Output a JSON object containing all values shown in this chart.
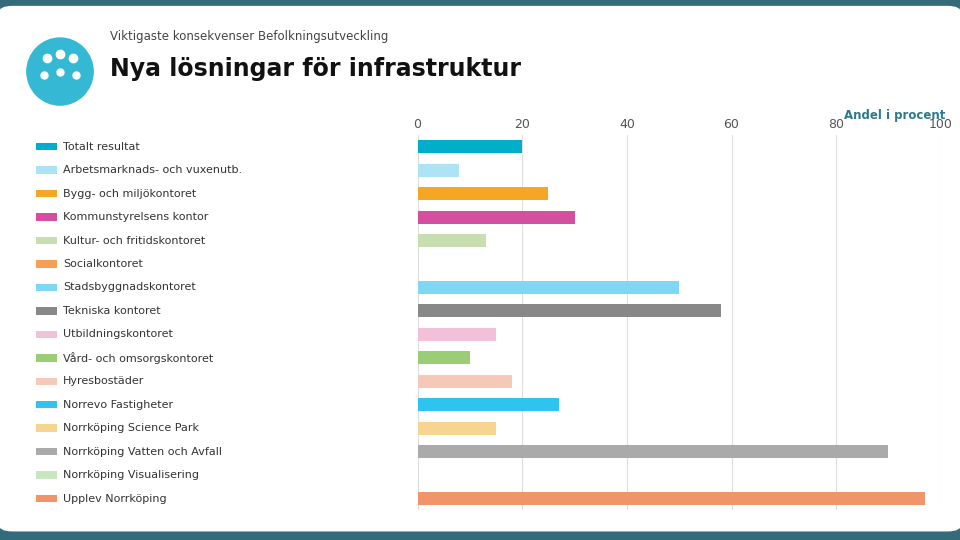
{
  "title_small": "Viktigaste konsekvenser Befolkningsutveckling",
  "title_large": "Nya lösningar för infrastruktur",
  "xlabel": "Andel i procent",
  "categories": [
    "Totalt resultat",
    "Arbetsmarknads- och vuxenutb.",
    "Bygg- och miljökontoret",
    "Kommunstyrelsens kontor",
    "Kultur- och fritidskontoret",
    "Socialkontoret",
    "Stadsbyggnadskontoret",
    "Tekniska kontoret",
    "Utbildningskontoret",
    "Vård- och omsorgskontoret",
    "Hyresbostäder",
    "Norrevo Fastigheter",
    "Norrköping Science Park",
    "Norrköping Vatten och Avfall",
    "Norrköping Visualisering",
    "Upplev Norrköping"
  ],
  "values": [
    20,
    8,
    25,
    30,
    13,
    0,
    50,
    58,
    15,
    10,
    18,
    27,
    15,
    90,
    0,
    97
  ],
  "colors": [
    "#00AECC",
    "#AEE3F5",
    "#F5A623",
    "#D44FA0",
    "#C8DDB0",
    "#F5A055",
    "#7ED8F5",
    "#888888",
    "#F2C0D8",
    "#9ACD76",
    "#F5C8B8",
    "#2EC4F0",
    "#F5D590",
    "#AAAAAA",
    "#C8E6C0",
    "#F0956A"
  ],
  "xlim": [
    0,
    100
  ],
  "xticks": [
    0,
    20,
    40,
    60,
    80,
    100
  ],
  "background_color": "#FFFFFF",
  "outer_background": "#336B7A",
  "title_color": "#333333",
  "subtitle_color": "#111111",
  "xlabel_color": "#2B7A8C",
  "grid_color": "#DDDDDD",
  "tick_color": "#555555"
}
